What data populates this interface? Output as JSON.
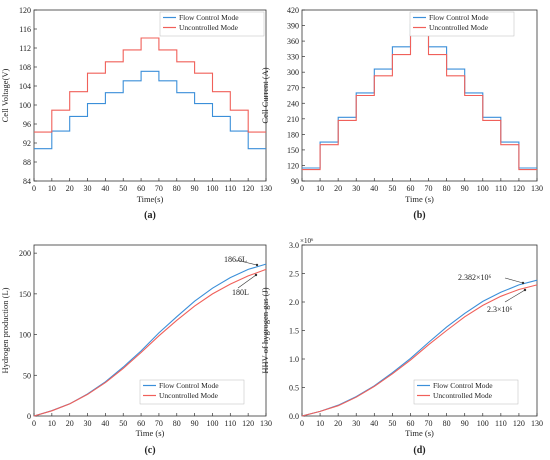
{
  "chart_data": [
    {
      "type": "line",
      "panel_label": "(a)",
      "xlabel": "Time(s)",
      "ylabel": "Cell Voltage(V)",
      "xlim": [
        0,
        130
      ],
      "ylim": [
        84,
        120
      ],
      "xticks": [
        0,
        10,
        20,
        30,
        40,
        50,
        60,
        70,
        80,
        90,
        100,
        110,
        120,
        130
      ],
      "yticks": [
        84,
        88,
        92,
        96,
        100,
        104,
        108,
        112,
        116,
        120
      ],
      "legend": "top-right",
      "grid": false,
      "series": [
        {
          "name": "Flow Control Mode",
          "color": "#3b8fd9",
          "x": [
            0,
            10,
            10,
            20,
            20,
            30,
            30,
            40,
            40,
            50,
            50,
            60,
            60,
            70,
            70,
            80,
            80,
            90,
            90,
            100,
            100,
            110,
            110,
            120,
            120,
            130
          ],
          "y": [
            90.8,
            90.8,
            94.5,
            94.5,
            97.6,
            97.6,
            100.3,
            100.3,
            102.6,
            102.6,
            105.1,
            105.1,
            107.1,
            107.1,
            105.1,
            105.1,
            102.6,
            102.6,
            100.3,
            100.3,
            97.6,
            97.6,
            94.5,
            94.5,
            90.8,
            90.8
          ]
        },
        {
          "name": "Uncontrolled Mode",
          "color": "#f0605a",
          "x": [
            0,
            10,
            10,
            20,
            20,
            30,
            30,
            40,
            40,
            50,
            50,
            60,
            60,
            70,
            70,
            80,
            80,
            90,
            90,
            100,
            100,
            110,
            110,
            120,
            120,
            130
          ],
          "y": [
            94.3,
            94.3,
            98.9,
            98.9,
            102.8,
            102.8,
            106.7,
            106.7,
            109.1,
            109.1,
            111.6,
            111.6,
            114.1,
            114.1,
            111.6,
            111.6,
            109.1,
            109.1,
            106.7,
            106.7,
            102.8,
            102.8,
            98.9,
            98.9,
            94.3,
            94.3
          ]
        }
      ]
    },
    {
      "type": "line",
      "panel_label": "(b)",
      "xlabel": "Time (s)",
      "ylabel": "Cell Current (A)",
      "xlim": [
        0,
        130
      ],
      "ylim": [
        90,
        420
      ],
      "xticks": [
        0,
        10,
        20,
        30,
        40,
        50,
        60,
        70,
        80,
        90,
        100,
        110,
        120,
        130
      ],
      "yticks": [
        90,
        120,
        150,
        180,
        210,
        240,
        270,
        300,
        330,
        360,
        390,
        420
      ],
      "legend": "top-right",
      "grid": false,
      "series": [
        {
          "name": "Flow Control Mode",
          "color": "#3b8fd9",
          "x": [
            0,
            10,
            10,
            20,
            20,
            30,
            30,
            40,
            40,
            50,
            50,
            60,
            60,
            70,
            70,
            80,
            80,
            90,
            90,
            100,
            100,
            110,
            110,
            120,
            120,
            130
          ],
          "y": [
            115,
            115,
            165,
            165,
            213,
            213,
            260,
            260,
            306,
            306,
            349,
            349,
            392,
            392,
            349,
            349,
            306,
            306,
            260,
            260,
            213,
            213,
            165,
            165,
            115,
            115
          ]
        },
        {
          "name": "Uncontrolled Mode",
          "color": "#f0605a",
          "x": [
            0,
            10,
            10,
            20,
            20,
            30,
            30,
            40,
            40,
            50,
            50,
            60,
            60,
            70,
            70,
            80,
            80,
            90,
            90,
            100,
            100,
            110,
            110,
            120,
            120,
            130
          ],
          "y": [
            112,
            112,
            160,
            160,
            207,
            207,
            255,
            255,
            293,
            293,
            334,
            334,
            373,
            373,
            334,
            334,
            293,
            293,
            255,
            255,
            207,
            207,
            160,
            160,
            112,
            112
          ]
        }
      ]
    },
    {
      "type": "line",
      "panel_label": "(c)",
      "xlabel": "Time (s)",
      "ylabel": "Hydrogen production (L)",
      "xlim": [
        0,
        130
      ],
      "ylim": [
        0,
        210
      ],
      "xticks": [
        0,
        10,
        20,
        30,
        40,
        50,
        60,
        70,
        80,
        90,
        100,
        110,
        120,
        130
      ],
      "yticks": [
        0,
        50,
        100,
        150,
        200
      ],
      "legend": "bottom-right",
      "grid": false,
      "annotations": [
        "186.6L",
        "180L"
      ],
      "series": [
        {
          "name": "Flow Control Mode",
          "color": "#3b8fd9",
          "x": [
            0,
            10,
            20,
            30,
            40,
            50,
            60,
            70,
            80,
            90,
            100,
            110,
            120,
            130
          ],
          "y": [
            0,
            6.5,
            15,
            27,
            42,
            60,
            80,
            102,
            122,
            141,
            157,
            170,
            180,
            186.6
          ]
        },
        {
          "name": "Uncontrolled Mode",
          "color": "#f0605a",
          "x": [
            0,
            10,
            20,
            30,
            40,
            50,
            60,
            70,
            80,
            90,
            100,
            110,
            120,
            130
          ],
          "y": [
            0,
            6.4,
            14.8,
            26.5,
            41,
            58.5,
            78,
            98.5,
            117.5,
            135,
            150,
            162,
            172,
            180
          ]
        }
      ]
    },
    {
      "type": "line",
      "panel_label": "(d)",
      "xlabel": "Time (s)",
      "ylabel": "HHV of hygrogen gas (J)",
      "y_multiplier": "×10⁶",
      "xlim": [
        0,
        130
      ],
      "ylim": [
        0,
        3.0
      ],
      "xticks": [
        0,
        10,
        20,
        30,
        40,
        50,
        60,
        70,
        80,
        90,
        100,
        110,
        120,
        130
      ],
      "yticks": [
        0.0,
        0.5,
        1.0,
        1.5,
        2.0,
        2.5,
        3.0
      ],
      "legend": "bottom-right",
      "grid": false,
      "annotations": [
        "2.382×10⁶",
        "2.3×10⁶"
      ],
      "series": [
        {
          "name": "Flow Control Mode",
          "color": "#3b8fd9",
          "x": [
            0,
            10,
            20,
            30,
            40,
            50,
            60,
            70,
            80,
            90,
            100,
            110,
            120,
            130
          ],
          "y": [
            0,
            0.08,
            0.19,
            0.34,
            0.53,
            0.76,
            1.01,
            1.29,
            1.56,
            1.8,
            2.01,
            2.17,
            2.3,
            2.382
          ]
        },
        {
          "name": "Uncontrolled Mode",
          "color": "#f0605a",
          "x": [
            0,
            10,
            20,
            30,
            40,
            50,
            60,
            70,
            80,
            90,
            100,
            110,
            120,
            130
          ],
          "y": [
            0,
            0.08,
            0.18,
            0.33,
            0.52,
            0.74,
            0.98,
            1.25,
            1.5,
            1.74,
            1.94,
            2.1,
            2.22,
            2.3
          ]
        }
      ]
    }
  ]
}
